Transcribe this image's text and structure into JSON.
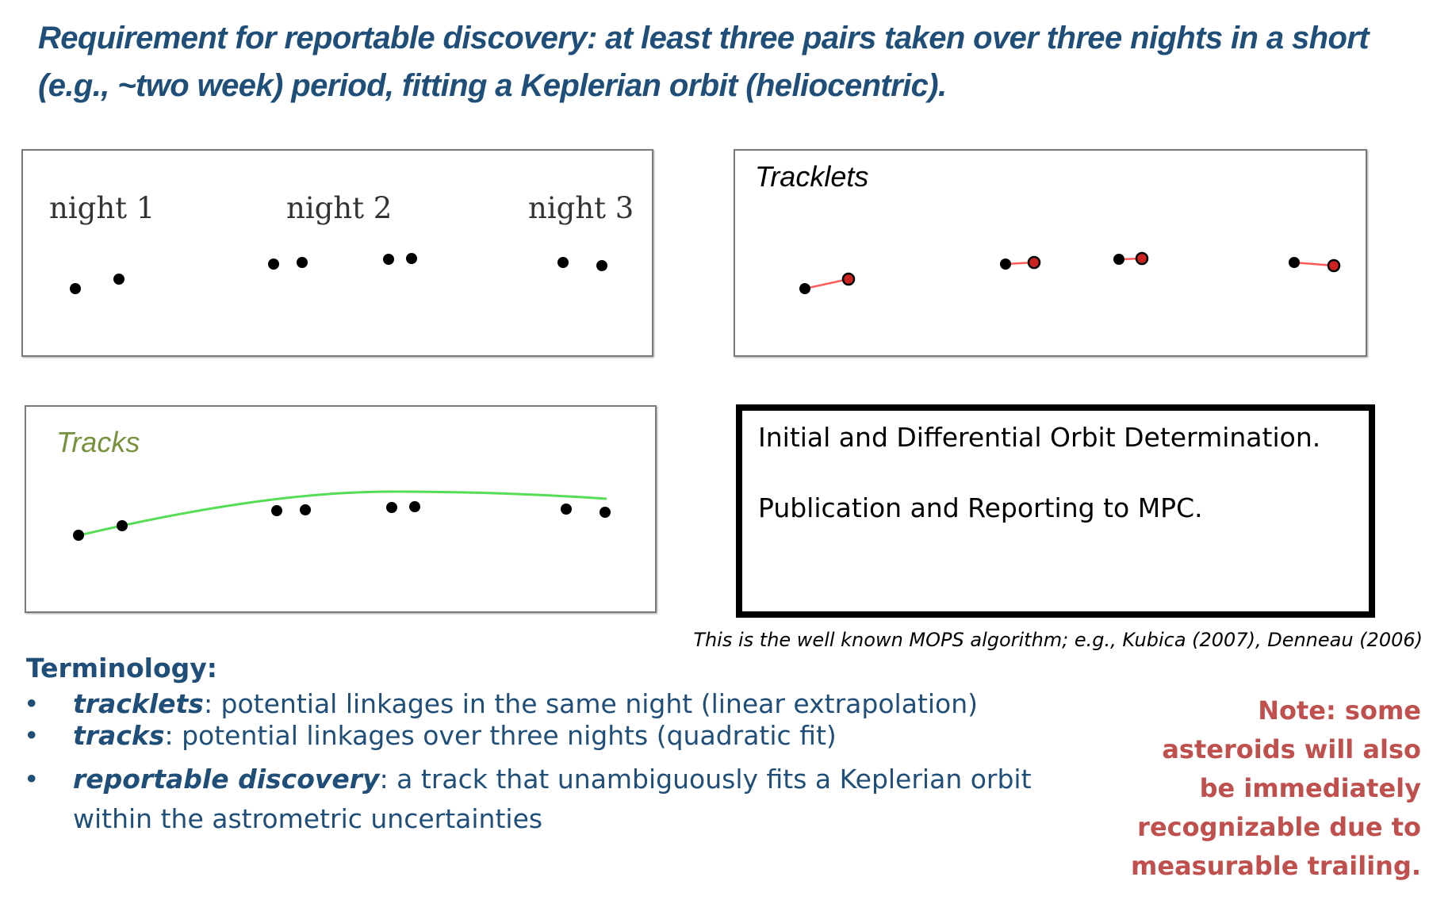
{
  "headline": {
    "emphasis": "Requirement for reportable discovery",
    "rest": ": at least three pairs taken over three nights in a short (e.g., ~two week) period, fitting a Keplerian orbit (heliocentric)."
  },
  "nights_panel": {
    "labels": [
      "night 1",
      "night 2",
      "night 3"
    ]
  },
  "tracklets_panel": {
    "title": "Tracklets"
  },
  "tracks_panel": {
    "title": "Tracks"
  },
  "orbit_box": {
    "line1": "Initial and Differential Orbit Determination.",
    "line2": "Publication and Reporting to MPC."
  },
  "citation": "This is the well known MOPS algorithm; e.g., Kubica (2007), Denneau (2006)",
  "terminology": {
    "heading": "Terminology:",
    "items": [
      {
        "term": "tracklets",
        "desc": ": potential linkages in the same night (linear extrapolation)"
      },
      {
        "term": "tracks",
        "desc": ": potential linkages over three nights (quadratic fit)"
      },
      {
        "term": "reportable discovery",
        "desc": ": a track that unambiguously fits a Keplerian orbit within the astrometric uncertainties"
      }
    ]
  },
  "note": "Note: some asteroids will also be immediately recognizable due to measurable trailing.",
  "colors": {
    "headline": "#1f4e79",
    "tracks_title": "#76923c",
    "tracklet_line": "#ff5a5a",
    "track_curve": "#55dd55",
    "note": "#c0504d"
  }
}
